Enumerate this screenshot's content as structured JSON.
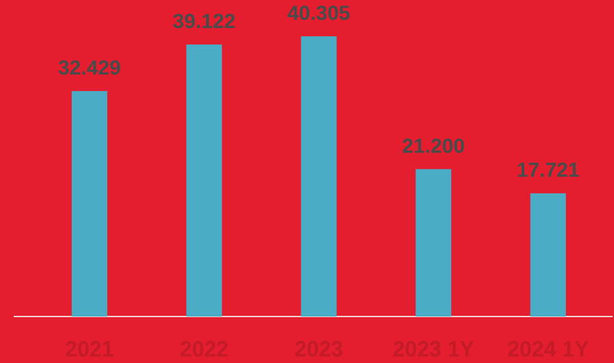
{
  "chart_data": {
    "type": "bar",
    "categories": [
      "2021",
      "2022",
      "2023",
      "2023 1Y",
      "2024 1Y"
    ],
    "values": [
      32.429,
      39.122,
      40.305,
      21.2,
      17.721
    ],
    "value_labels": [
      "32.429",
      "39.122",
      "40.305",
      "21.200",
      "17.721"
    ],
    "color": "#4bacc6"
  }
}
